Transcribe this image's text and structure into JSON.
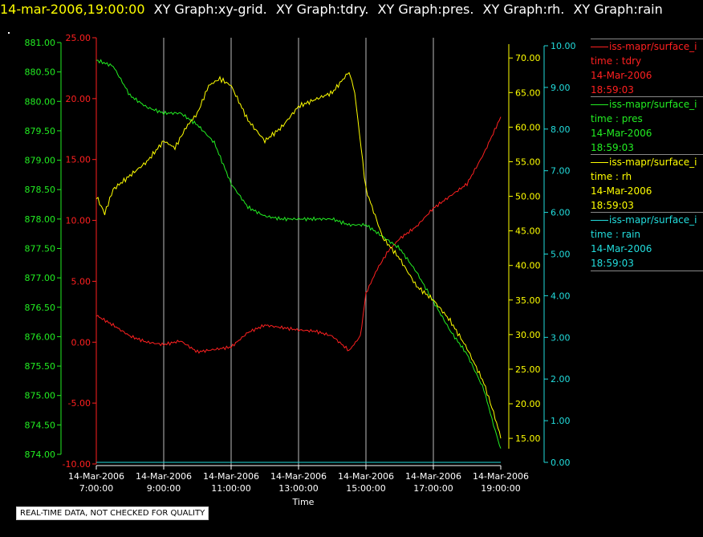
{
  "header": {
    "timestamp": "14-mar-2006,19:00:00",
    "graph_titles": [
      "XY Graph:xy-grid.",
      "XY Graph:tdry.",
      "XY Graph:pres.",
      "XY Graph:rh.",
      "XY Graph:rain"
    ]
  },
  "notice": "REAL-TIME DATA, NOT CHECKED FOR QUALITY",
  "colors": {
    "tdry": "#ff2020",
    "pres": "#22ee22",
    "rh": "#ffff00",
    "rain": "#22dddd",
    "grid": "#bbbbbb",
    "text": "#ffffff"
  },
  "legend": [
    {
      "source": "iss-mapr/surface_i",
      "var": "time : tdry",
      "date": "14-Mar-2006",
      "time": "18:59:03",
      "color": "#ff2020"
    },
    {
      "source": "iss-mapr/surface_i",
      "var": "time : pres",
      "date": "14-Mar-2006",
      "time": "18:59:03",
      "color": "#22ee22"
    },
    {
      "source": "iss-mapr/surface_i",
      "var": "time : rh",
      "date": "14-Mar-2006",
      "time": "18:59:03",
      "color": "#ffff00"
    },
    {
      "source": "iss-mapr/surface_i",
      "var": "time : rain",
      "date": "14-Mar-2006",
      "time": "18:59:03",
      "color": "#22dddd"
    }
  ],
  "chart_data": {
    "type": "line",
    "xlabel": "Time",
    "x_ticks": [
      {
        "date": "14-Mar-2006",
        "time": "7:00:00"
      },
      {
        "date": "14-Mar-2006",
        "time": "9:00:00"
      },
      {
        "date": "14-Mar-2006",
        "time": "11:00:00"
      },
      {
        "date": "14-Mar-2006",
        "time": "13:00:00"
      },
      {
        "date": "14-Mar-2006",
        "time": "15:00:00"
      },
      {
        "date": "14-Mar-2006",
        "time": "17:00:00"
      },
      {
        "date": "14-Mar-2006",
        "time": "19:00:00"
      }
    ],
    "xlim": [
      "7:00",
      "19:00"
    ],
    "grid": "vertical",
    "axes": {
      "pres": {
        "ylim": [
          874.0,
          881.0
        ],
        "ticks": [
          "874.00",
          "874.50",
          "875.00",
          "875.50",
          "876.00",
          "876.50",
          "877.00",
          "877.50",
          "878.00",
          "878.50",
          "879.00",
          "879.50",
          "880.00",
          "880.50",
          "881.00"
        ]
      },
      "tdry": {
        "ylim": [
          -10.0,
          25.0
        ],
        "ticks": [
          "-10.00",
          "-5.00",
          "0.00",
          "5.00",
          "10.00",
          "15.00",
          "20.00",
          "25.00"
        ]
      },
      "rh": {
        "ylim": [
          13.5,
          72.0
        ],
        "ticks": [
          "15.00",
          "20.00",
          "25.00",
          "30.00",
          "35.00",
          "40.00",
          "45.00",
          "50.00",
          "55.00",
          "60.00",
          "65.00",
          "70.00"
        ]
      },
      "rain": {
        "ylim": [
          0.0,
          10.0
        ],
        "ticks": [
          "0.00",
          "1.00",
          "2.00",
          "3.00",
          "4.00",
          "5.00",
          "6.00",
          "7.00",
          "8.00",
          "9.00",
          "10.00"
        ]
      }
    },
    "series": [
      {
        "name": "tdry",
        "x": [
          "7:00",
          "7:30",
          "8:00",
          "8:30",
          "9:00",
          "9:30",
          "10:00",
          "10:30",
          "11:00",
          "11:30",
          "12:00",
          "12:30",
          "13:00",
          "13:30",
          "14:00",
          "14:30",
          "14:50",
          "15:00",
          "15:20",
          "15:40",
          "16:00",
          "16:30",
          "17:00",
          "17:30",
          "18:00",
          "18:30",
          "19:00"
        ],
        "y": [
          2.2,
          1.4,
          0.5,
          0.0,
          -0.2,
          0.1,
          -0.8,
          -0.6,
          -0.4,
          0.8,
          1.4,
          1.2,
          1.0,
          0.9,
          0.5,
          -0.7,
          0.5,
          4.0,
          6.0,
          7.5,
          8.5,
          9.5,
          11.0,
          12.0,
          13.0,
          15.5,
          18.5
        ]
      },
      {
        "name": "pres",
        "x": [
          "7:00",
          "7:30",
          "8:00",
          "8:30",
          "9:00",
          "9:30",
          "10:00",
          "10:30",
          "11:00",
          "11:30",
          "12:00",
          "12:30",
          "13:00",
          "13:30",
          "14:00",
          "14:30",
          "15:00",
          "15:30",
          "16:00",
          "16:30",
          "17:00",
          "17:30",
          "18:00",
          "18:30",
          "18:50",
          "19:00"
        ],
        "y": [
          880.7,
          880.6,
          880.1,
          879.9,
          879.8,
          879.8,
          879.6,
          879.3,
          878.6,
          878.2,
          878.05,
          878.0,
          878.0,
          878.0,
          878.0,
          877.9,
          877.9,
          877.7,
          877.5,
          877.1,
          876.6,
          876.1,
          875.7,
          875.1,
          874.4,
          874.1
        ]
      },
      {
        "name": "rh",
        "x": [
          "7:00",
          "7:15",
          "7:30",
          "8:00",
          "8:30",
          "9:00",
          "9:20",
          "9:40",
          "10:00",
          "10:20",
          "10:40",
          "11:00",
          "11:30",
          "12:00",
          "12:30",
          "13:00",
          "13:30",
          "14:00",
          "14:30",
          "14:40",
          "15:00",
          "15:30",
          "16:00",
          "16:30",
          "17:00",
          "17:30",
          "18:00",
          "18:30",
          "18:50",
          "19:00"
        ],
        "y": [
          50,
          47.5,
          51,
          53,
          55,
          58,
          57,
          60,
          62,
          66,
          67,
          66,
          61,
          58,
          60,
          63,
          64,
          65,
          68,
          65,
          51,
          44,
          41,
          37,
          35,
          32,
          28,
          23,
          18,
          15
        ]
      },
      {
        "name": "rain",
        "x": [
          "7:00",
          "19:00"
        ],
        "y": [
          0.0,
          0.0
        ]
      }
    ]
  }
}
